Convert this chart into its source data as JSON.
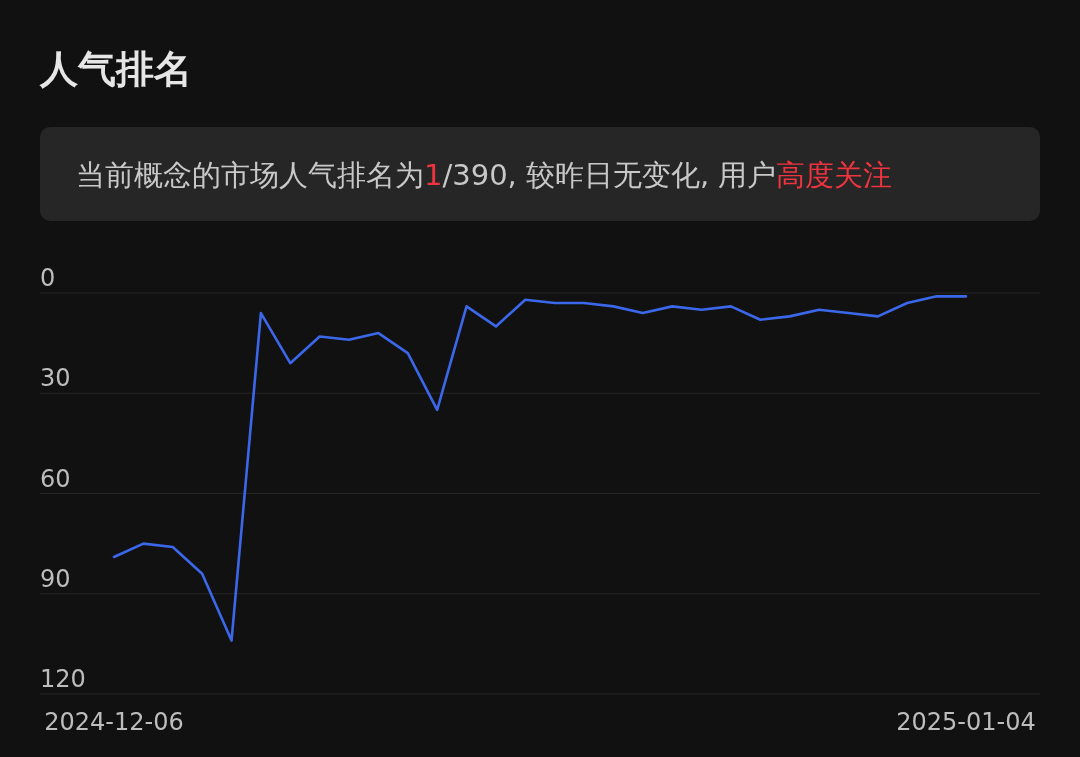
{
  "chart_data": {
    "type": "line",
    "title": "人气排名",
    "subtitle": "当前概念的市场人气排名为**1**/390, 较昨日无变化, 用户**高度关注**",
    "categories": [
      "2024-12-06",
      null,
      null,
      null,
      null,
      null,
      null,
      null,
      null,
      null,
      null,
      null,
      null,
      null,
      null,
      null,
      null,
      null,
      null,
      null,
      null,
      null,
      null,
      null,
      null,
      null,
      null,
      null,
      null,
      "2025-01-04"
    ],
    "series": [
      {
        "color": "#3b68ea",
        "values": [
          79,
          75,
          76,
          84,
          104,
          6,
          21,
          13,
          14,
          12,
          18,
          35,
          4,
          10,
          2,
          3,
          3,
          4,
          6,
          4,
          5,
          4,
          8,
          7,
          5,
          6,
          7,
          3,
          1,
          1
        ]
      }
    ],
    "ylim": [
      120,
      0
    ],
    "yticks": [
      0,
      30,
      60,
      90,
      120
    ],
    "grid": "y"
  }
}
